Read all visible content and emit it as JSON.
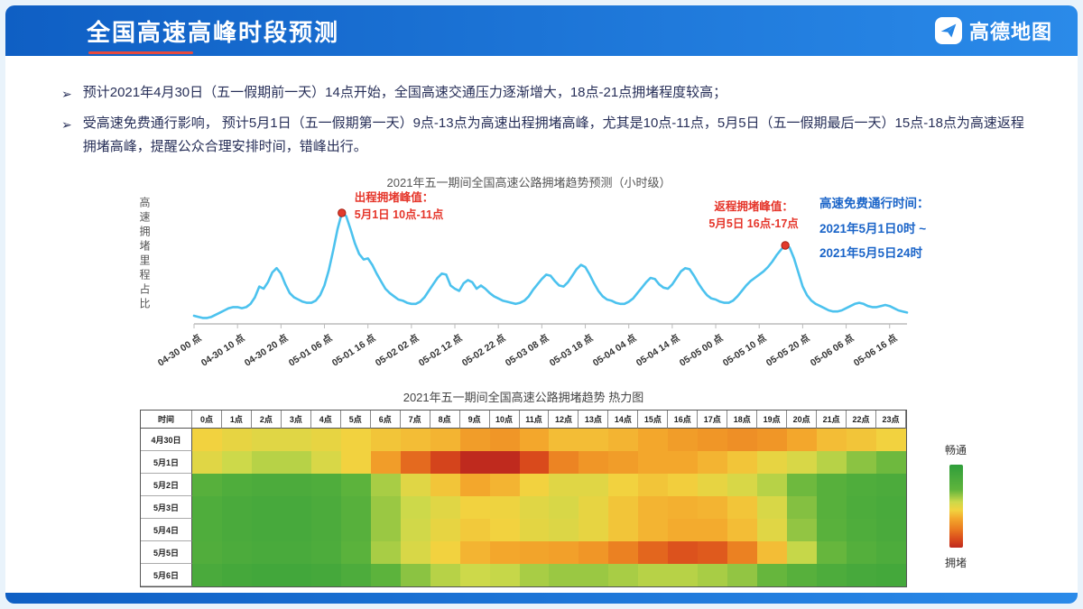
{
  "header": {
    "title": "全国高速高峰时段预测",
    "logo_text": "高德地图"
  },
  "bullets": [
    {
      "marker": "➢",
      "text": "预计2021年4月30日（五一假期前一天）14点开始，全国高速交通压力逐渐增大，18点-21点拥堵程度较高；"
    },
    {
      "marker": "➢",
      "text": "受高速免费通行影响， 预计5月1日（五一假期第一天）9点-13点为高速出程拥堵高峰，尤其是10点-11点，5月5日（五一假期最后一天）15点-18点为高速返程拥堵高峰，提醒公众合理安排时间，错峰出行。"
    }
  ],
  "colors": {
    "header_gradient_start": "#0f5fc4",
    "header_gradient_end": "#2a8ae9",
    "title_accent_red": "#e8493c",
    "bullet_text": "#272f58",
    "annotation_red": "#e5352a",
    "free_pass_blue": "#1a64c8"
  },
  "chart_data": [
    {
      "type": "line",
      "title": "2021年五一期间全国高速公路拥堵趋势预测（小时级）",
      "ylabel": "高速拥堵里程占比",
      "xlabel": "",
      "line_color": "#4cc2ee",
      "marker_color": "#e23a2c",
      "axis_color": "#cccccc",
      "x_tick_labels": [
        "04-30 00 点",
        "04-30 10 点",
        "04-30 20 点",
        "05-01 06 点",
        "05-01 16 点",
        "05-02 02 点",
        "05-02 12 点",
        "05-02 22 点",
        "05-03 08 点",
        "05-03 18 点",
        "05-04 04 点",
        "05-04 14 点",
        "05-05 00 点",
        "05-05 10 点",
        "05-05 20 点",
        "05-06 06 点",
        "05-06 16 点"
      ],
      "tick_interval_hours": 10,
      "x_unit": "hour",
      "ylim": [
        0,
        1
      ],
      "values": [
        0.05,
        0.04,
        0.03,
        0.03,
        0.04,
        0.06,
        0.08,
        0.1,
        0.12,
        0.13,
        0.13,
        0.12,
        0.13,
        0.16,
        0.22,
        0.32,
        0.3,
        0.36,
        0.45,
        0.49,
        0.44,
        0.34,
        0.26,
        0.22,
        0.2,
        0.18,
        0.17,
        0.17,
        0.19,
        0.24,
        0.33,
        0.47,
        0.65,
        0.85,
        1.0,
        0.97,
        0.85,
        0.72,
        0.62,
        0.57,
        0.58,
        0.52,
        0.44,
        0.37,
        0.3,
        0.26,
        0.23,
        0.2,
        0.19,
        0.17,
        0.16,
        0.16,
        0.18,
        0.22,
        0.28,
        0.34,
        0.4,
        0.44,
        0.43,
        0.33,
        0.3,
        0.28,
        0.35,
        0.38,
        0.36,
        0.3,
        0.33,
        0.3,
        0.26,
        0.23,
        0.21,
        0.19,
        0.18,
        0.17,
        0.16,
        0.17,
        0.19,
        0.23,
        0.29,
        0.34,
        0.39,
        0.43,
        0.42,
        0.37,
        0.33,
        0.32,
        0.36,
        0.42,
        0.48,
        0.52,
        0.5,
        0.43,
        0.35,
        0.28,
        0.23,
        0.2,
        0.19,
        0.17,
        0.16,
        0.16,
        0.18,
        0.21,
        0.26,
        0.31,
        0.36,
        0.4,
        0.39,
        0.34,
        0.31,
        0.3,
        0.34,
        0.4,
        0.46,
        0.49,
        0.48,
        0.42,
        0.35,
        0.29,
        0.24,
        0.21,
        0.2,
        0.18,
        0.17,
        0.17,
        0.19,
        0.23,
        0.28,
        0.33,
        0.37,
        0.4,
        0.43,
        0.46,
        0.5,
        0.55,
        0.61,
        0.66,
        0.7,
        0.68,
        0.58,
        0.45,
        0.32,
        0.24,
        0.19,
        0.16,
        0.14,
        0.12,
        0.1,
        0.09,
        0.09,
        0.1,
        0.12,
        0.14,
        0.16,
        0.17,
        0.16,
        0.14,
        0.13,
        0.13,
        0.14,
        0.15,
        0.14,
        0.12,
        0.1,
        0.09,
        0.08
      ],
      "peak_markers": [
        {
          "index": 34,
          "label_title": "出程拥堵峰值：",
          "label_detail": "5月1日  10点-11点"
        },
        {
          "index": 136,
          "label_title": "返程拥堵峰值：",
          "label_detail": "5月5日 16点-17点"
        }
      ],
      "free_pass_note": [
        "高速免费通行时间：",
        "2021年5月1日0时 ~",
        "2021年5月5日24时"
      ]
    },
    {
      "type": "heatmap",
      "title": "2021年五一期间全国高速公路拥堵趋势 热力图",
      "corner_header": "时间",
      "columns": [
        "0点",
        "1点",
        "2点",
        "3点",
        "4点",
        "5点",
        "6点",
        "7点",
        "8点",
        "9点",
        "10点",
        "11点",
        "12点",
        "13点",
        "14点",
        "15点",
        "16点",
        "17点",
        "18点",
        "19点",
        "20点",
        "21点",
        "22点",
        "23点"
      ],
      "rows": [
        "4月30日",
        "5月1日",
        "5月2日",
        "5月3日",
        "5月4日",
        "5月5日",
        "5月6日"
      ],
      "values": [
        [
          0.55,
          0.52,
          0.5,
          0.5,
          0.52,
          0.55,
          0.58,
          0.6,
          0.62,
          0.68,
          0.7,
          0.65,
          0.6,
          0.6,
          0.62,
          0.65,
          0.68,
          0.7,
          0.72,
          0.7,
          0.65,
          0.6,
          0.58,
          0.55
        ],
        [
          0.5,
          0.45,
          0.42,
          0.42,
          0.48,
          0.55,
          0.68,
          0.82,
          0.92,
          1.0,
          1.0,
          0.9,
          0.75,
          0.7,
          0.68,
          0.65,
          0.65,
          0.62,
          0.58,
          0.52,
          0.48,
          0.42,
          0.36,
          0.32
        ],
        [
          0.25,
          0.2,
          0.18,
          0.18,
          0.2,
          0.28,
          0.4,
          0.5,
          0.58,
          0.65,
          0.62,
          0.55,
          0.5,
          0.5,
          0.55,
          0.58,
          0.56,
          0.52,
          0.48,
          0.42,
          0.32,
          0.25,
          0.2,
          0.18
        ],
        [
          0.2,
          0.17,
          0.15,
          0.15,
          0.18,
          0.25,
          0.38,
          0.45,
          0.5,
          0.55,
          0.54,
          0.5,
          0.48,
          0.52,
          0.58,
          0.62,
          0.63,
          0.62,
          0.58,
          0.48,
          0.35,
          0.25,
          0.19,
          0.16
        ],
        [
          0.2,
          0.17,
          0.15,
          0.15,
          0.18,
          0.25,
          0.38,
          0.46,
          0.52,
          0.57,
          0.55,
          0.51,
          0.49,
          0.52,
          0.58,
          0.62,
          0.64,
          0.64,
          0.6,
          0.5,
          0.37,
          0.26,
          0.2,
          0.17
        ],
        [
          0.21,
          0.18,
          0.16,
          0.16,
          0.19,
          0.27,
          0.4,
          0.48,
          0.55,
          0.62,
          0.65,
          0.66,
          0.67,
          0.7,
          0.76,
          0.83,
          0.88,
          0.86,
          0.76,
          0.6,
          0.44,
          0.31,
          0.23,
          0.19
        ],
        [
          0.17,
          0.14,
          0.12,
          0.12,
          0.14,
          0.19,
          0.28,
          0.36,
          0.42,
          0.45,
          0.44,
          0.4,
          0.38,
          0.38,
          0.4,
          0.42,
          0.42,
          0.4,
          0.37,
          0.31,
          0.25,
          0.19,
          0.15,
          0.13
        ]
      ],
      "scale": {
        "min_label": "畅通",
        "max_label": "拥堵",
        "stops": [
          {
            "t": 0.0,
            "c": "#2f9e3b"
          },
          {
            "t": 0.3,
            "c": "#5fb43c"
          },
          {
            "t": 0.45,
            "c": "#cdd94a"
          },
          {
            "t": 0.55,
            "c": "#f2d23f"
          },
          {
            "t": 0.65,
            "c": "#f3a72c"
          },
          {
            "t": 0.78,
            "c": "#ea7a20"
          },
          {
            "t": 0.9,
            "c": "#d94a1c"
          },
          {
            "t": 1.0,
            "c": "#bf2a1e"
          }
        ]
      }
    }
  ]
}
